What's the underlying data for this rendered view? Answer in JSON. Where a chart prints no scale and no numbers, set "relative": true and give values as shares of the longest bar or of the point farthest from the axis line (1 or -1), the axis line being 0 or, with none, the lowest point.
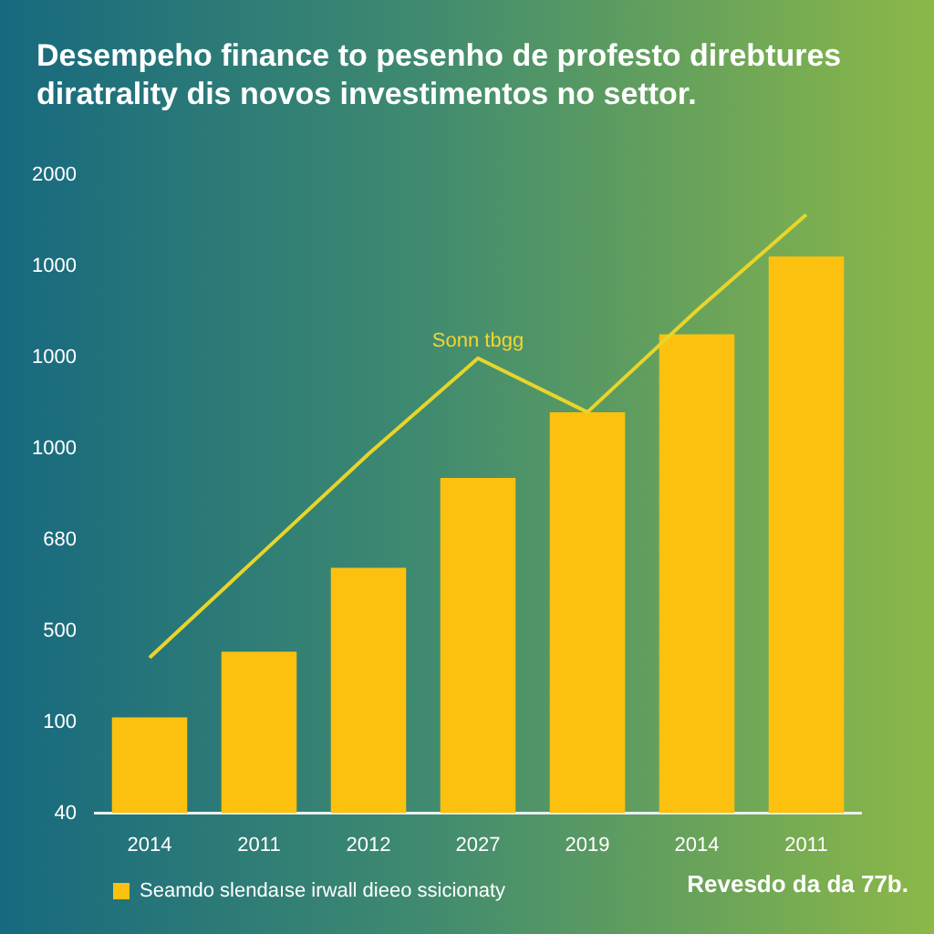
{
  "chart_data": {
    "type": "bar",
    "title": "Desempeho finance to pesenho de profesto direbtures diratrality dis novos investimentos no settor.",
    "categories": [
      "2014",
      "2011",
      "2012",
      "2027",
      "2019",
      "2014",
      "2011"
    ],
    "series": [
      {
        "name": "Seamdo slendaıse irwall dieeo ssicionaty",
        "color": "#fcc10f",
        "values": [
          0.16,
          0.27,
          0.41,
          0.56,
          0.67,
          0.8,
          0.93
        ]
      },
      {
        "type": "line",
        "color": "#e8d52a",
        "values": [
          0.26,
          0.43,
          0.6,
          0.76,
          0.67,
          0.84,
          1.0
        ]
      }
    ],
    "relative": true,
    "annotations": [
      "2000",
      "1000",
      "1000",
      "1000",
      "680",
      "500",
      "100",
      "40",
      {
        "text": "Sonn tbgg",
        "x": "2027",
        "y": 0.76
      },
      "Revesdo da da 77b."
    ],
    "legend": "bottom left",
    "marker": "none"
  }
}
